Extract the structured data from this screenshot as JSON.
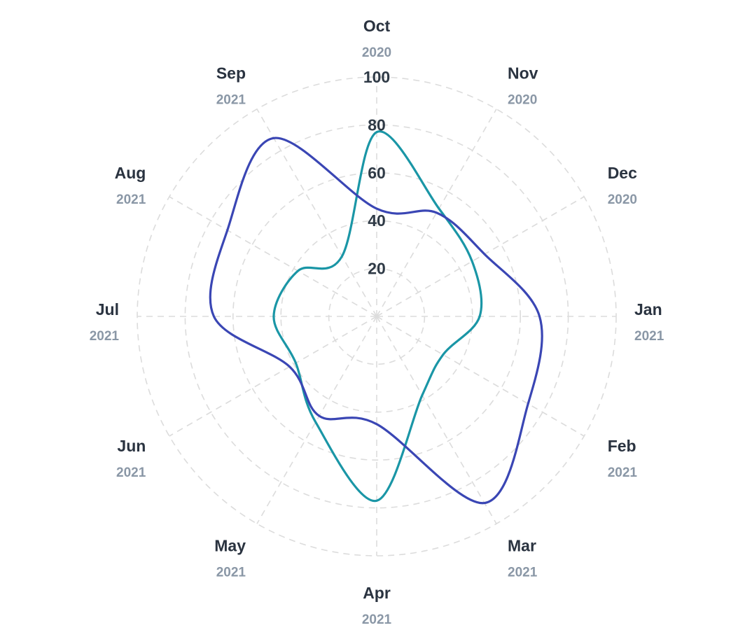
{
  "chart_data": {
    "type": "radar",
    "title": "",
    "categories": [
      {
        "month": "Oct",
        "year": "2020"
      },
      {
        "month": "Nov",
        "year": "2020"
      },
      {
        "month": "Dec",
        "year": "2020"
      },
      {
        "month": "Jan",
        "year": "2021"
      },
      {
        "month": "Feb",
        "year": "2021"
      },
      {
        "month": "Mar",
        "year": "2021"
      },
      {
        "month": "Apr",
        "year": "2021"
      },
      {
        "month": "May",
        "year": "2021"
      },
      {
        "month": "Jun",
        "year": "2021"
      },
      {
        "month": "Jul",
        "year": "2021"
      },
      {
        "month": "Aug",
        "year": "2021"
      },
      {
        "month": "Sep",
        "year": "2021"
      }
    ],
    "radial_ticks": [
      "20",
      "40",
      "60",
      "80",
      "100"
    ],
    "rlim": [
      0,
      100
    ],
    "grid": true,
    "series": [
      {
        "color": "#1a96a6",
        "values": [
          77,
          52,
          46,
          43,
          32,
          38,
          77,
          51,
          39,
          43,
          38,
          29
        ]
      },
      {
        "color": "#3a46b4",
        "values": [
          45,
          50,
          52,
          68,
          73,
          90,
          45,
          48,
          42,
          68,
          72,
          86
        ]
      }
    ]
  }
}
